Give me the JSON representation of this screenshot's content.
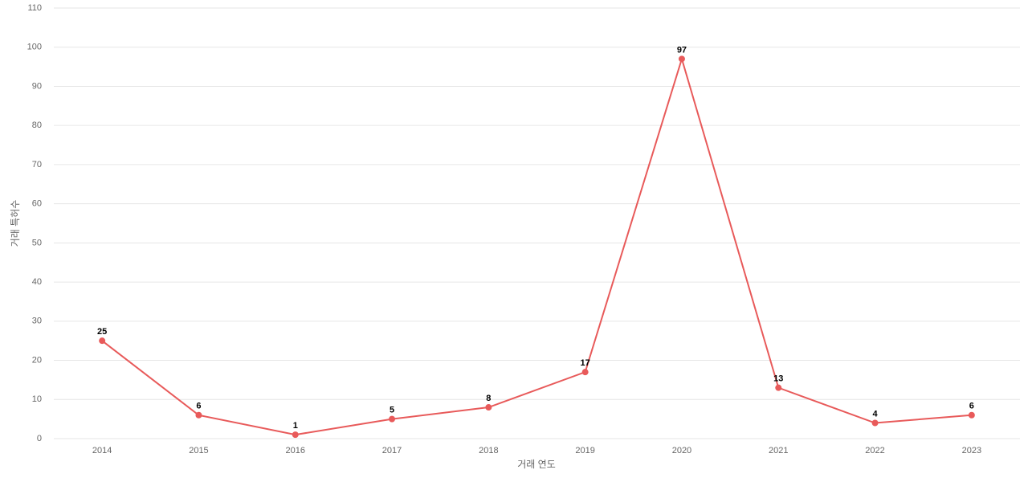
{
  "chart_data": {
    "type": "line",
    "x_label": "거래 연도",
    "y_label": "거래 특허수",
    "categories": [
      "2014",
      "2015",
      "2016",
      "2017",
      "2018",
      "2019",
      "2020",
      "2021",
      "2022",
      "2023"
    ],
    "series": [
      {
        "name": "거래 특허수",
        "color": "#e85a5a",
        "values": [
          25,
          6,
          1,
          5,
          8,
          17,
          97,
          13,
          4,
          6
        ]
      }
    ],
    "ylim": [
      0,
      110
    ],
    "yticks": [
      0,
      10,
      20,
      30,
      40,
      50,
      60,
      70,
      80,
      90,
      100,
      110
    ],
    "grid": true
  }
}
